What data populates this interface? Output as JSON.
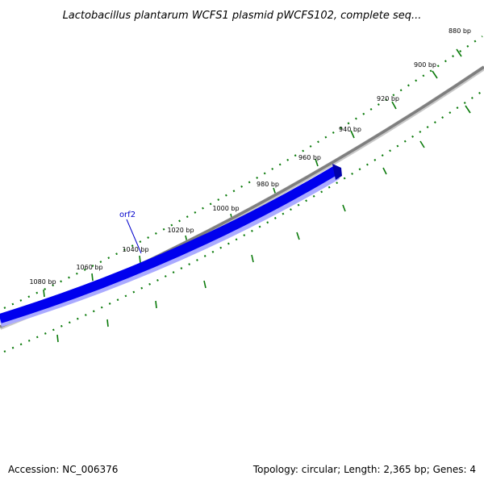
{
  "title": "Lactobacillus plantarum WCFS1 plasmid pWCFS102, complete seq...",
  "accession": "Accession: NC_006376",
  "summary": "Topology: circular; Length: 2,365 bp; Genes: 4",
  "colors": {
    "backbone": "#7f7f7f",
    "gene_forward": "#0000ee",
    "ticks": "#0a7a0a",
    "label_line": "#0000cc"
  },
  "tick_labels": [
    "880 bp",
    "900 bp",
    "920 bp",
    "940 bp",
    "960 bp",
    "980 bp",
    "1000 bp",
    "1020 bp",
    "1040 bp",
    "1060 bp",
    "1080 bp"
  ],
  "genes": [
    {
      "name": "orf2",
      "strand": "forward"
    }
  ]
}
